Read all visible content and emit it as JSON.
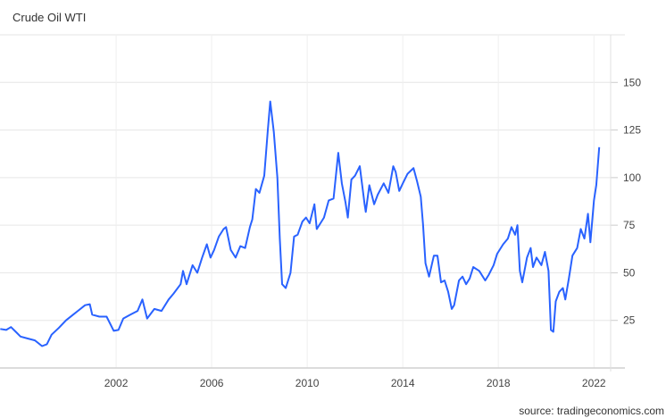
{
  "chart_data": {
    "type": "line",
    "title": "Crude Oil WTI",
    "source": "source: tradingeconomics.com",
    "xlabel": "",
    "ylabel": "",
    "xlim": [
      1997.14,
      2022.7
    ],
    "ylim": [
      0,
      175
    ],
    "grid": true,
    "y_axis_side": "right",
    "line_color": "#2962ff",
    "x_ticks": [
      2002,
      2006,
      2010,
      2014,
      2018,
      2022
    ],
    "y_ticks": [
      25,
      50,
      75,
      100,
      125,
      150
    ],
    "series": [
      {
        "x": [
          1997.15,
          1997.4,
          1997.6,
          1997.8,
          1998.0,
          1998.3,
          1998.6,
          1998.9,
          1999.1,
          1999.3,
          1999.6,
          1999.9,
          2000.2,
          2000.4,
          2000.7,
          2000.9,
          2001.0,
          2001.3,
          2001.6,
          2001.9,
          2002.1,
          2002.3,
          2002.6,
          2002.9,
          2003.1,
          2003.3,
          2003.6,
          2003.9,
          2004.2,
          2004.4,
          2004.7,
          2004.8,
          2004.95,
          2005.2,
          2005.4,
          2005.6,
          2005.8,
          2005.95,
          2006.1,
          2006.3,
          2006.5,
          2006.6,
          2006.8,
          2007.0,
          2007.2,
          2007.4,
          2007.6,
          2007.7,
          2007.85,
          2008.0,
          2008.2,
          2008.35,
          2008.45,
          2008.6,
          2008.75,
          2008.85,
          2008.95,
          2009.1,
          2009.3,
          2009.45,
          2009.6,
          2009.8,
          2009.95,
          2010.1,
          2010.3,
          2010.4,
          2010.55,
          2010.7,
          2010.9,
          2011.1,
          2011.3,
          2011.45,
          2011.6,
          2011.7,
          2011.85,
          2012.0,
          2012.2,
          2012.4,
          2012.45,
          2012.6,
          2012.8,
          2012.95,
          2013.2,
          2013.4,
          2013.6,
          2013.7,
          2013.85,
          2014.0,
          2014.2,
          2014.45,
          2014.6,
          2014.75,
          2014.85,
          2014.95,
          2015.1,
          2015.3,
          2015.45,
          2015.6,
          2015.75,
          2015.9,
          2016.05,
          2016.15,
          2016.35,
          2016.5,
          2016.65,
          2016.8,
          2016.95,
          2017.2,
          2017.45,
          2017.6,
          2017.8,
          2017.95,
          2018.2,
          2018.4,
          2018.55,
          2018.7,
          2018.8,
          2018.9,
          2019.0,
          2019.2,
          2019.35,
          2019.45,
          2019.6,
          2019.8,
          2019.95,
          2020.1,
          2020.2,
          2020.3,
          2020.4,
          2020.55,
          2020.7,
          2020.8,
          2020.95,
          2021.1,
          2021.3,
          2021.45,
          2021.6,
          2021.75,
          2021.85,
          2022.0,
          2022.1,
          2022.22
        ],
        "y": [
          20.5,
          20,
          21.5,
          19,
          16.5,
          15.5,
          14.5,
          11.5,
          12.5,
          17.5,
          21,
          25,
          28,
          30,
          33,
          33.5,
          28,
          27,
          27,
          19.5,
          20,
          26,
          28,
          30,
          36,
          26,
          31,
          30,
          36,
          39,
          44,
          51,
          44,
          54,
          50,
          58,
          65,
          58,
          62,
          69,
          73,
          74,
          62,
          58,
          64,
          63,
          74,
          78,
          94,
          92,
          101,
          125,
          140,
          124,
          100,
          68,
          44,
          42,
          50,
          69,
          70,
          77,
          79,
          76,
          86,
          73,
          76,
          79,
          88,
          89,
          113,
          97,
          87,
          79,
          99,
          101,
          106,
          86,
          82,
          96,
          86,
          91,
          97,
          92,
          106,
          103,
          93,
          97,
          102,
          105,
          98,
          90,
          75,
          55,
          48,
          59,
          59,
          45,
          46,
          40,
          31,
          33,
          46,
          48,
          44,
          47,
          53,
          51,
          46,
          49,
          54,
          60,
          65,
          68,
          74,
          70,
          75,
          51,
          45,
          58,
          63,
          53,
          58,
          54,
          61,
          51,
          20,
          19,
          35,
          40,
          42,
          36,
          47,
          59,
          63,
          73,
          68,
          81,
          66,
          88,
          96,
          116
        ]
      }
    ]
  }
}
